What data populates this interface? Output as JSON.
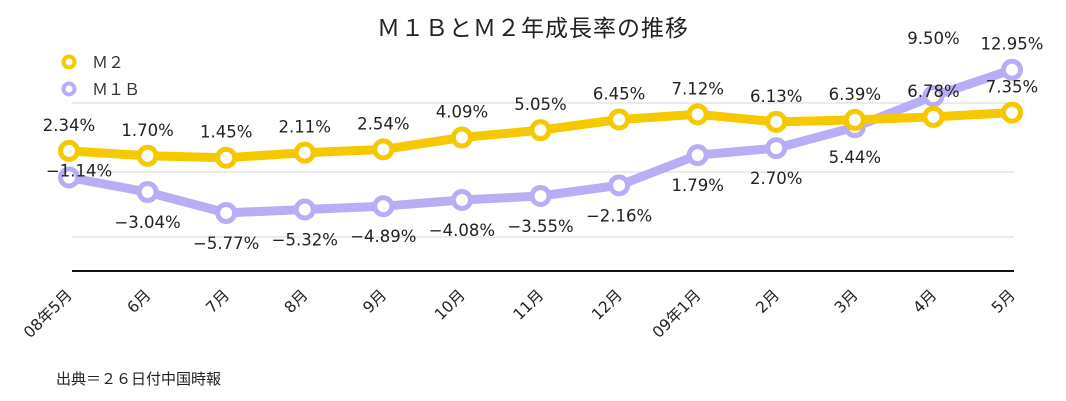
{
  "chart_data": {
    "type": "line",
    "title": "Ｍ１ＢとＭ２年成長率の推移",
    "categories": [
      "08年5月",
      "6月",
      "7月",
      "8月",
      "9月",
      "10月",
      "11月",
      "12月",
      "09年1月",
      "2月",
      "3月",
      "4月",
      "5月"
    ],
    "series": [
      {
        "name": "Ｍ２",
        "color": "#f5c800",
        "values": [
          2.34,
          1.7,
          1.45,
          2.11,
          2.54,
          4.09,
          5.05,
          6.45,
          7.12,
          6.13,
          6.39,
          6.78,
          7.35
        ],
        "labels": [
          "2.34%",
          "1.70%",
          "1.45%",
          "2.11%",
          "2.54%",
          "4.09%",
          "5.05%",
          "6.45%",
          "7.12%",
          "6.13%",
          "6.39%",
          "6.78%",
          "7.35%"
        ]
      },
      {
        "name": "Ｍ１Ｂ",
        "color": "#b7aef5",
        "values": [
          -1.14,
          -3.04,
          -5.77,
          -5.32,
          -4.89,
          -4.08,
          -3.55,
          -2.16,
          1.79,
          2.7,
          5.44,
          9.5,
          12.95
        ],
        "labels": [
          "−1.14%",
          "−3.04%",
          "−5.77%",
          "−5.32%",
          "−4.89%",
          "−4.08%",
          "−3.55%",
          "−2.16%",
          "1.79%",
          "2.70%",
          "5.44%",
          "9.50%",
          "12.95%"
        ]
      }
    ],
    "legend_position": "top-left",
    "grid": true
  },
  "source": "出典＝２６日付中国時報"
}
